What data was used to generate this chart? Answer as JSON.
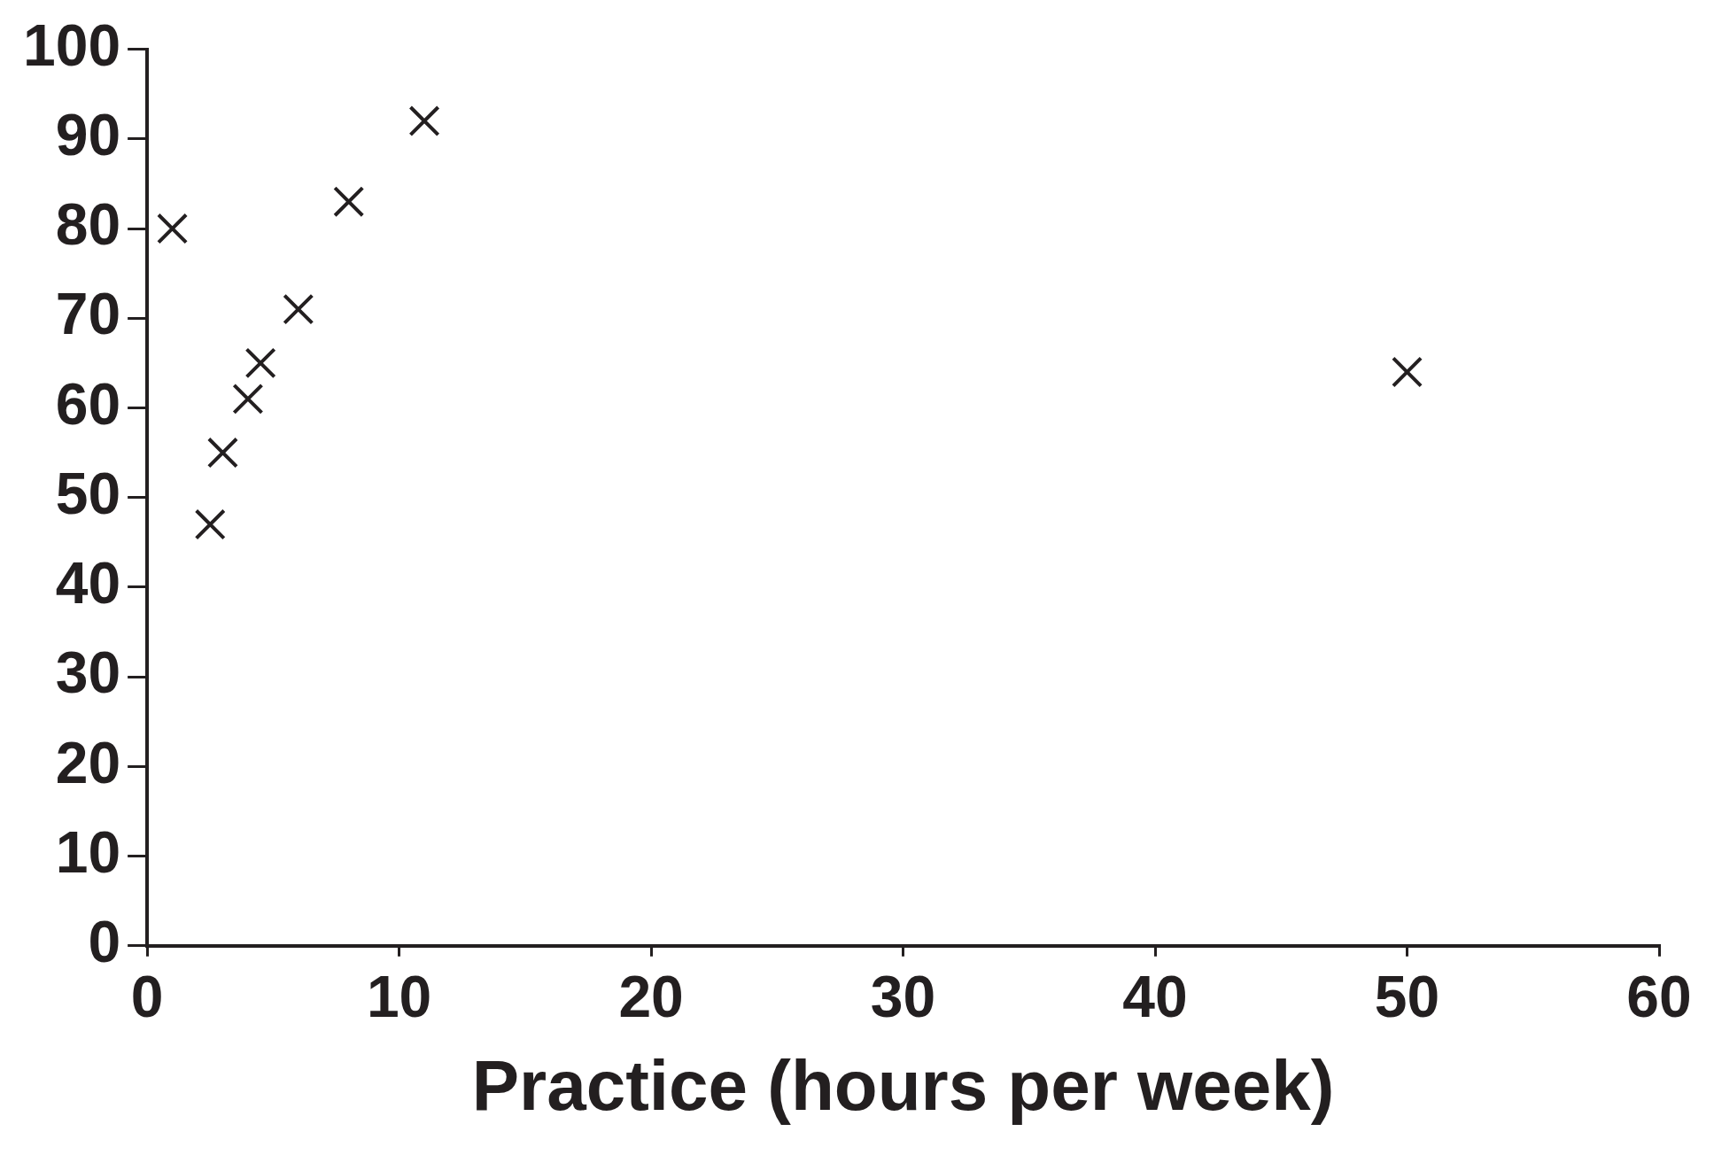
{
  "chart_data": {
    "type": "scatter",
    "xlabel": "Practice (hours per week)",
    "series": [
      {
        "color": "#231f20",
        "x": [
          1,
          2.5,
          3,
          4,
          4.5,
          6,
          8,
          11,
          50
        ],
        "values": [
          80,
          47,
          55,
          61,
          65,
          71,
          83,
          92,
          64
        ]
      }
    ],
    "xlim": [
      0,
      60
    ],
    "xticks": [
      0,
      10,
      20,
      30,
      40,
      50,
      60
    ],
    "ylim": [
      0,
      100
    ],
    "yticks": [
      0,
      10,
      20,
      30,
      40,
      50,
      60,
      70,
      80,
      90,
      100
    ],
    "grid": false,
    "legend": false,
    "marker": "cross"
  }
}
